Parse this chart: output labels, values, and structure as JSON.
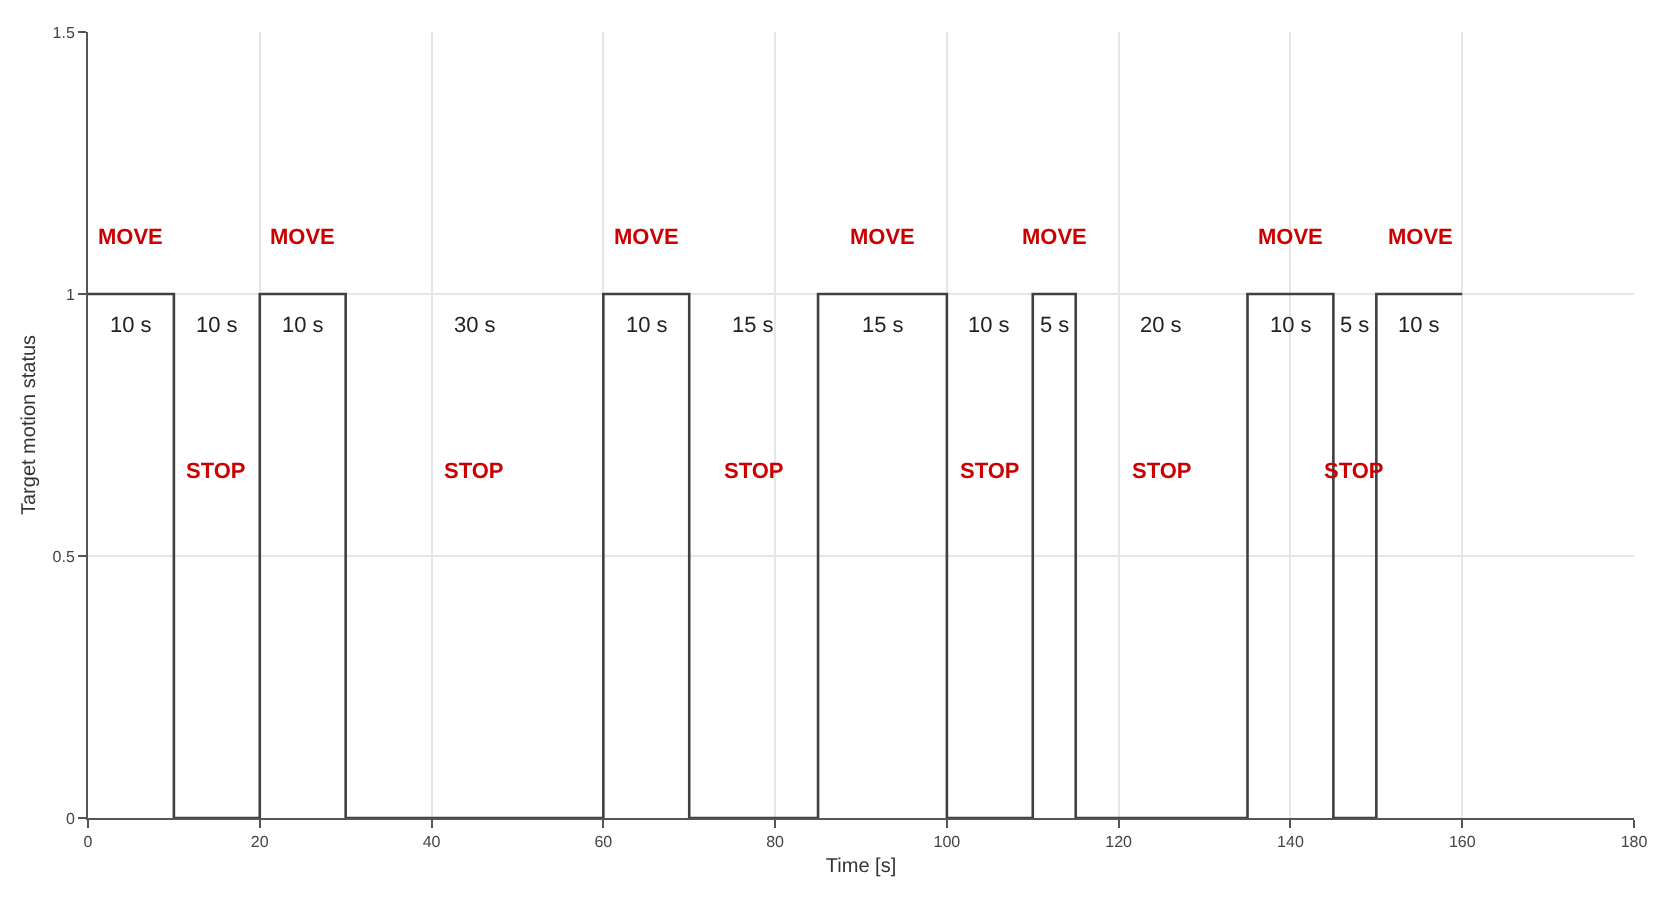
{
  "chart_data": {
    "type": "step",
    "xlabel": "Time [s]",
    "ylabel": "Target motion status",
    "x": [
      0,
      10,
      20,
      30,
      60,
      70,
      85,
      100,
      110,
      115,
      135,
      145,
      150,
      160
    ],
    "series": [
      {
        "color": "#404040",
        "values": [
          1,
          0,
          1,
          0,
          1,
          0,
          1,
          0,
          1,
          0,
          1,
          0,
          1,
          1
        ]
      }
    ],
    "xlim": [
      0,
      180
    ],
    "xticks": [
      0,
      20,
      40,
      60,
      80,
      100,
      120,
      140,
      160,
      180
    ],
    "ylim": [
      0,
      1.5
    ],
    "yticks": [
      0,
      0.5,
      1,
      1.5
    ],
    "grid": true,
    "annotations": [
      "MOVE",
      "MOVE",
      "MOVE",
      "MOVE",
      "MOVE",
      "MOVE",
      "MOVE",
      "10 s",
      "10 s",
      "10 s",
      "30 s",
      "10 s",
      "15 s",
      "15 s",
      "10 s",
      "5 s",
      "20 s",
      "10 s",
      "5 s",
      "10 s",
      "STOP",
      "STOP",
      "STOP",
      "STOP",
      "STOP",
      "STOP"
    ]
  }
}
